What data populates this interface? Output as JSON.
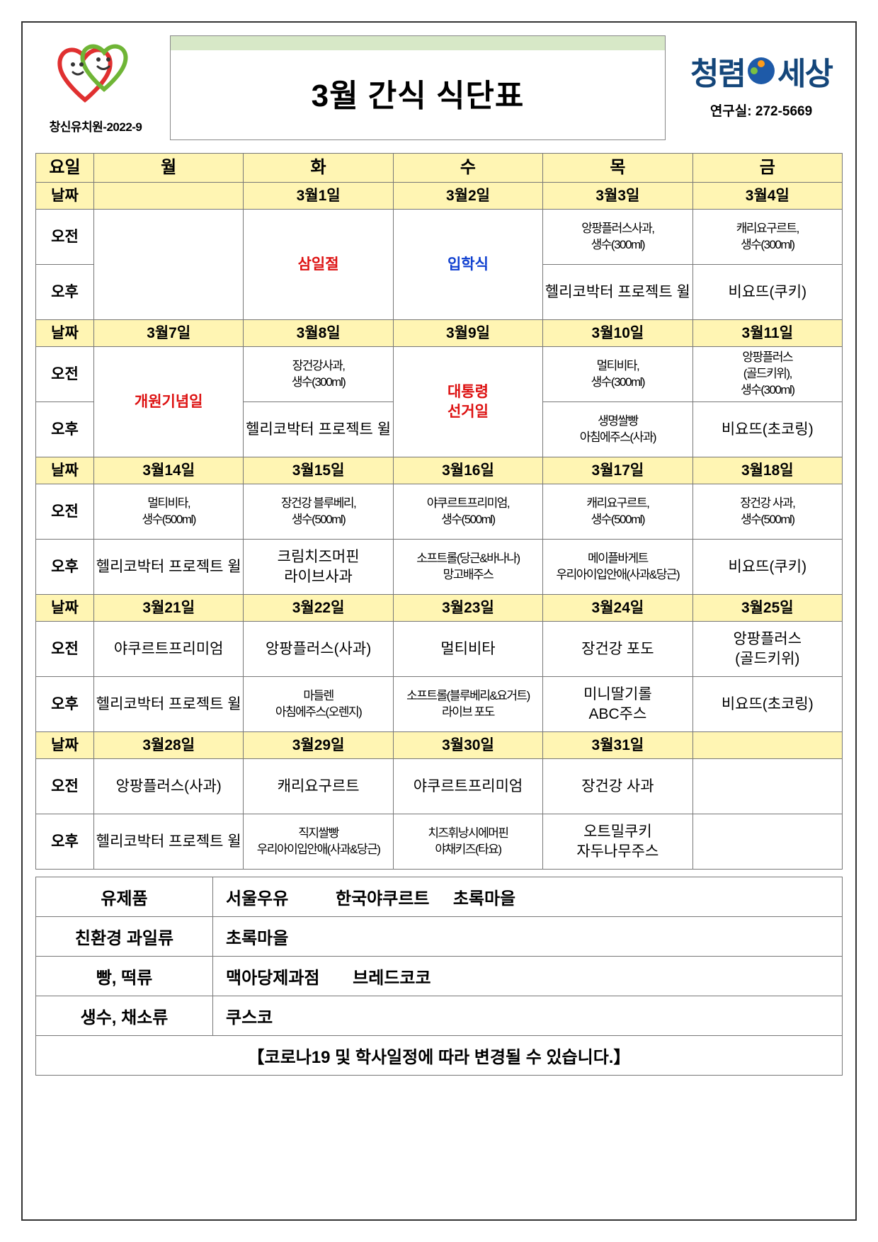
{
  "header": {
    "left_caption": "창신유치원-2022-9",
    "title": "3월 간식 식단표",
    "brand_a": "청렴",
    "brand_b": "세상",
    "phone_label": "연구실:",
    "phone_number": "272-5669"
  },
  "headers": {
    "day_label": "요일",
    "days": [
      "월",
      "화",
      "수",
      "목",
      "금"
    ],
    "date_label": "날짜",
    "am": "오전",
    "pm": "오후"
  },
  "weeks": [
    {
      "dates": [
        "",
        "3월1일",
        "3월2일",
        "3월3일",
        "3월4일"
      ],
      "am": [
        "",
        "",
        "",
        "앙팡플러스사과,\n생수(300ml)",
        "캐리요구르트,\n생수(300ml)"
      ],
      "pm": [
        "",
        "",
        "",
        "헬리코박터 프로젝트 윌",
        "비요뜨(쿠키)"
      ],
      "span_mon_both": true,
      "merge_tue": {
        "text": "삼일절",
        "class": "red"
      },
      "merge_wed": {
        "text": "입학식",
        "class": "blue"
      }
    },
    {
      "dates": [
        "3월7일",
        "3월8일",
        "3월9일",
        "3월10일",
        "3월11일"
      ],
      "am": [
        "",
        "장건강사과,\n생수(300ml)",
        "",
        "멀티비타,\n생수(300ml)",
        "앙팡플러스\n(골드키위),\n생수(300ml)"
      ],
      "pm": [
        "",
        "헬리코박터 프로젝트 윌",
        "",
        "생명쌀빵\n아침에주스(사과)",
        "비요뜨(초코링)"
      ],
      "merge_mon": {
        "text": "개원기념일",
        "class": "red"
      },
      "merge_wed": {
        "text": "대통령\n선거일",
        "class": "red"
      }
    },
    {
      "dates": [
        "3월14일",
        "3월15일",
        "3월16일",
        "3월17일",
        "3월18일"
      ],
      "am": [
        "멀티비타,\n생수(500ml)",
        "장건강 블루베리,\n생수(500ml)",
        "야쿠르트프리미엄,\n생수(500ml)",
        "캐리요구르트,\n생수(500ml)",
        "장건강 사과,\n생수(500ml)"
      ],
      "pm": [
        "헬리코박터 프로젝트 윌",
        "크림치즈머핀\n라이브사과",
        "소프트롤(당근&바나나)\n망고배주스",
        "메이플바게트\n우리아이입안애(사과&당근)",
        "비요뜨(쿠키)"
      ]
    },
    {
      "dates": [
        "3월21일",
        "3월22일",
        "3월23일",
        "3월24일",
        "3월25일"
      ],
      "am": [
        "야쿠르트프리미엄",
        "앙팡플러스(사과)",
        "멀티비타",
        "장건강 포도",
        "앙팡플러스\n(골드키위)"
      ],
      "pm": [
        "헬리코박터 프로젝트 윌",
        "마들렌\n아침에주스(오렌지)",
        "소프트롤(블루베리&요거트)\n라이브 포도",
        "미니딸기롤\nABC주스",
        "비요뜨(초코링)"
      ]
    },
    {
      "dates": [
        "3월28일",
        "3월29일",
        "3월30일",
        "3월31일",
        ""
      ],
      "am": [
        "앙팡플러스(사과)",
        "캐리요구르트",
        "야쿠르트프리미엄",
        "장건강 사과",
        ""
      ],
      "pm": [
        "헬리코박터 프로젝트 윌",
        "직지쌀빵\n우리아이입안애(사과&당근)",
        "치즈휘낭시에머핀\n야채키즈(타요)",
        "오트밀쿠키\n자두나무주스",
        ""
      ]
    }
  ],
  "suppliers": [
    {
      "k": "유제품",
      "v": "서울우유          한국야쿠르트     초록마을"
    },
    {
      "k": "친환경  과일류",
      "v": "초록마을"
    },
    {
      "k": "빵, 떡류",
      "v": "맥아당제과점       브레드코코"
    },
    {
      "k": "생수, 채소류",
      "v": "쿠스코"
    }
  ],
  "notice": "【코로나19 및 학사일정에 따라    변경될 수 있습니다.】",
  "colors": {
    "header_bg": "#fff5b3",
    "title_bar": "#d7e8c7",
    "border": "#777777",
    "red": "#dd1111",
    "blue": "#1040d0",
    "brand": "#14467a"
  }
}
